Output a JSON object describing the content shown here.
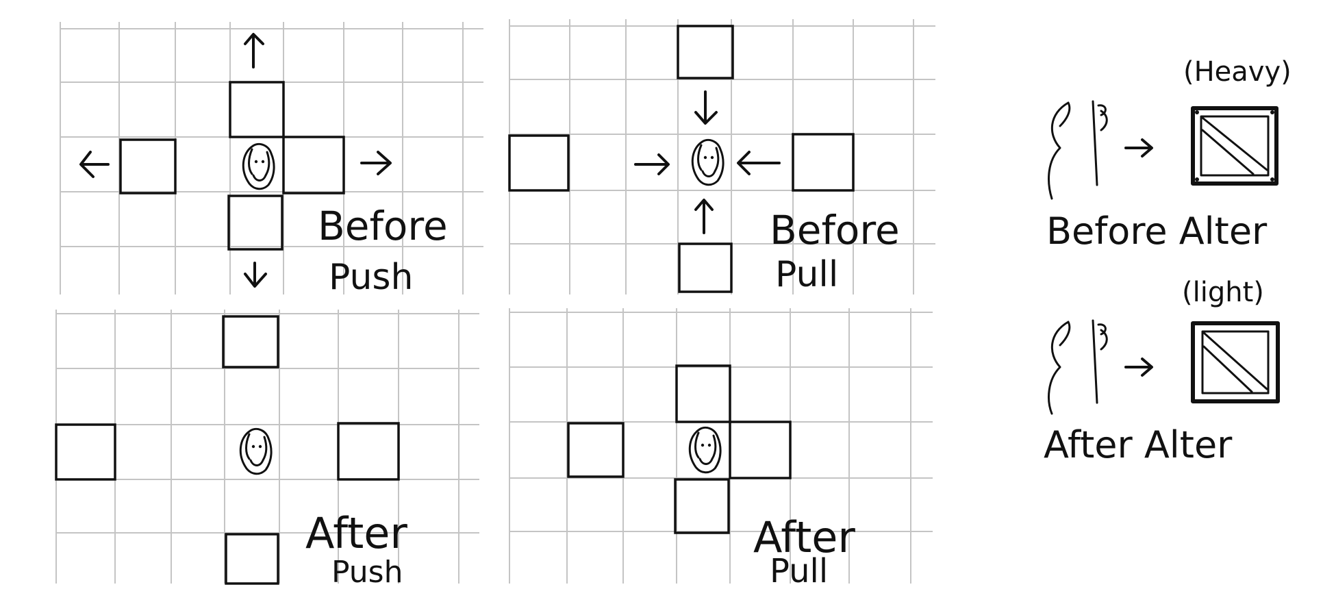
{
  "panels": {
    "before_push": {
      "label_top": "Before",
      "label_bottom": "Push"
    },
    "before_pull": {
      "label_top": "Before",
      "label_bottom": "Pull"
    },
    "after_push": {
      "label_top": "After",
      "label_bottom": "Push"
    },
    "after_pull": {
      "label_top": "After",
      "label_bottom": "Pull"
    }
  },
  "alter": {
    "before": {
      "caption": "Before Alter",
      "weight": "(Heavy)"
    },
    "after": {
      "caption": "After Alter",
      "weight": "(light)"
    }
  },
  "colors": {
    "ink": "#111111",
    "grid": "#c4c4c4",
    "background": "#ffffff"
  }
}
